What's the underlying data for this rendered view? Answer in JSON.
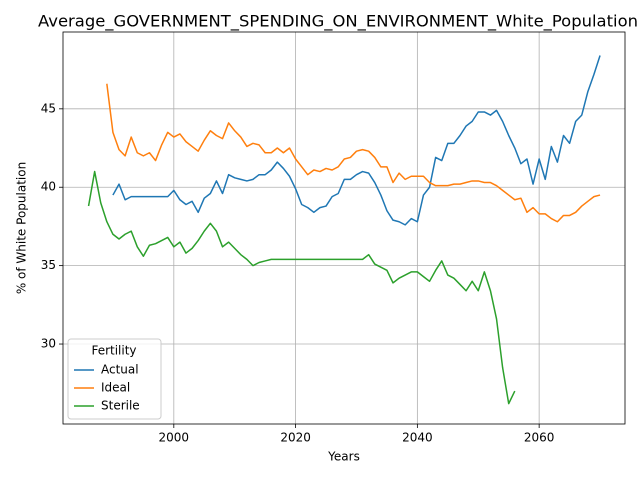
{
  "chart_data": {
    "type": "line",
    "title": "Average_GOVERNMENT_SPENDING_ON_ENVIRONMENT_White_Population",
    "xlabel": "Years",
    "ylabel": "% of White Population",
    "legend_title": "Fertility",
    "legend": "lower left",
    "grid": true,
    "xlim": [
      1981.8,
      2074.1
    ],
    "ylim": [
      24.9,
      49.9
    ],
    "xticks": [
      2000,
      2020,
      2040,
      2060
    ],
    "yticks": [
      30,
      35,
      40,
      45
    ],
    "x": [
      1986,
      1987,
      1988,
      1989,
      1990,
      1991,
      1992,
      1993,
      1994,
      1995,
      1996,
      1997,
      1998,
      1999,
      2000,
      2001,
      2002,
      2003,
      2004,
      2005,
      2006,
      2007,
      2008,
      2009,
      2010,
      2011,
      2012,
      2013,
      2014,
      2015,
      2016,
      2017,
      2018,
      2019,
      2020,
      2021,
      2022,
      2023,
      2024,
      2025,
      2026,
      2027,
      2028,
      2029,
      2030,
      2031,
      2032,
      2033,
      2034,
      2035,
      2036,
      2037,
      2038,
      2039,
      2040,
      2041,
      2042,
      2043,
      2044,
      2045,
      2046,
      2047,
      2048,
      2049,
      2050,
      2051,
      2052,
      2053,
      2054,
      2055,
      2056,
      2057,
      2058,
      2059,
      2060,
      2061,
      2062,
      2063,
      2064,
      2065,
      2066,
      2067,
      2068,
      2069,
      2070
    ],
    "series": [
      {
        "name": "Actual",
        "color": "#1f77b4",
        "values": [
          null,
          null,
          null,
          null,
          39.5,
          40.2,
          39.2,
          39.4,
          39.4,
          39.4,
          39.4,
          39.4,
          39.4,
          39.4,
          39.8,
          39.2,
          38.9,
          39.1,
          38.4,
          39.3,
          39.6,
          40.4,
          39.6,
          40.8,
          40.6,
          40.5,
          40.4,
          40.5,
          40.8,
          40.8,
          41.1,
          41.6,
          41.2,
          40.7,
          39.9,
          38.9,
          38.7,
          38.4,
          38.7,
          38.8,
          39.4,
          39.6,
          40.5,
          40.5,
          40.8,
          41.0,
          40.9,
          40.3,
          39.5,
          38.5,
          37.9,
          37.8,
          37.6,
          38.0,
          37.8,
          39.5,
          40.0,
          41.9,
          41.7,
          42.8,
          42.8,
          43.3,
          43.9,
          44.2,
          44.8,
          44.8,
          44.6,
          44.9,
          44.2,
          43.3,
          42.5,
          41.5,
          41.8,
          40.2,
          41.8,
          40.5,
          42.6,
          41.6,
          43.3,
          42.8,
          44.2,
          44.6,
          46.1,
          47.2,
          48.4
        ]
      },
      {
        "name": "Ideal",
        "color": "#ff7f0e",
        "values": [
          null,
          null,
          null,
          46.6,
          43.5,
          42.4,
          42.0,
          43.2,
          42.2,
          42.0,
          42.2,
          41.7,
          42.7,
          43.5,
          43.2,
          43.4,
          42.9,
          42.6,
          42.3,
          43.0,
          43.6,
          43.3,
          43.1,
          44.1,
          43.6,
          43.2,
          42.6,
          42.8,
          42.7,
          42.2,
          42.2,
          42.5,
          42.2,
          42.5,
          41.8,
          41.3,
          40.8,
          41.1,
          41.0,
          41.2,
          41.1,
          41.3,
          41.8,
          41.9,
          42.3,
          42.4,
          42.3,
          41.9,
          41.3,
          41.3,
          40.3,
          40.9,
          40.5,
          40.7,
          40.7,
          40.7,
          40.3,
          40.1,
          40.1,
          40.1,
          40.2,
          40.2,
          40.3,
          40.4,
          40.4,
          40.3,
          40.3,
          40.1,
          39.8,
          39.5,
          39.2,
          39.3,
          38.4,
          38.7,
          38.3,
          38.3,
          38.0,
          37.8,
          38.2,
          38.2,
          38.4,
          38.8,
          39.1,
          39.4,
          39.5
        ]
      },
      {
        "name": "Sterile",
        "color": "#2ca02c",
        "values": [
          38.8,
          41.0,
          39.0,
          37.8,
          37.0,
          36.7,
          37.0,
          37.2,
          36.2,
          35.6,
          36.3,
          36.4,
          36.6,
          36.8,
          36.2,
          36.5,
          35.8,
          36.1,
          36.6,
          37.2,
          37.7,
          37.2,
          36.2,
          36.5,
          36.1,
          35.7,
          35.4,
          35.0,
          35.2,
          35.3,
          35.4,
          35.4,
          35.4,
          35.4,
          35.4,
          35.4,
          35.4,
          35.4,
          35.4,
          35.4,
          35.4,
          35.4,
          35.4,
          35.4,
          35.4,
          35.4,
          35.7,
          35.1,
          34.9,
          34.7,
          33.9,
          34.2,
          34.4,
          34.6,
          34.6,
          34.3,
          34.0,
          34.7,
          35.3,
          34.4,
          34.2,
          33.8,
          33.4,
          34.0,
          33.4,
          34.6,
          33.4,
          31.6,
          28.5,
          26.2,
          27.0,
          null,
          null,
          null,
          null,
          null,
          null,
          null,
          null,
          null,
          null,
          null,
          null,
          null,
          null
        ]
      }
    ]
  }
}
